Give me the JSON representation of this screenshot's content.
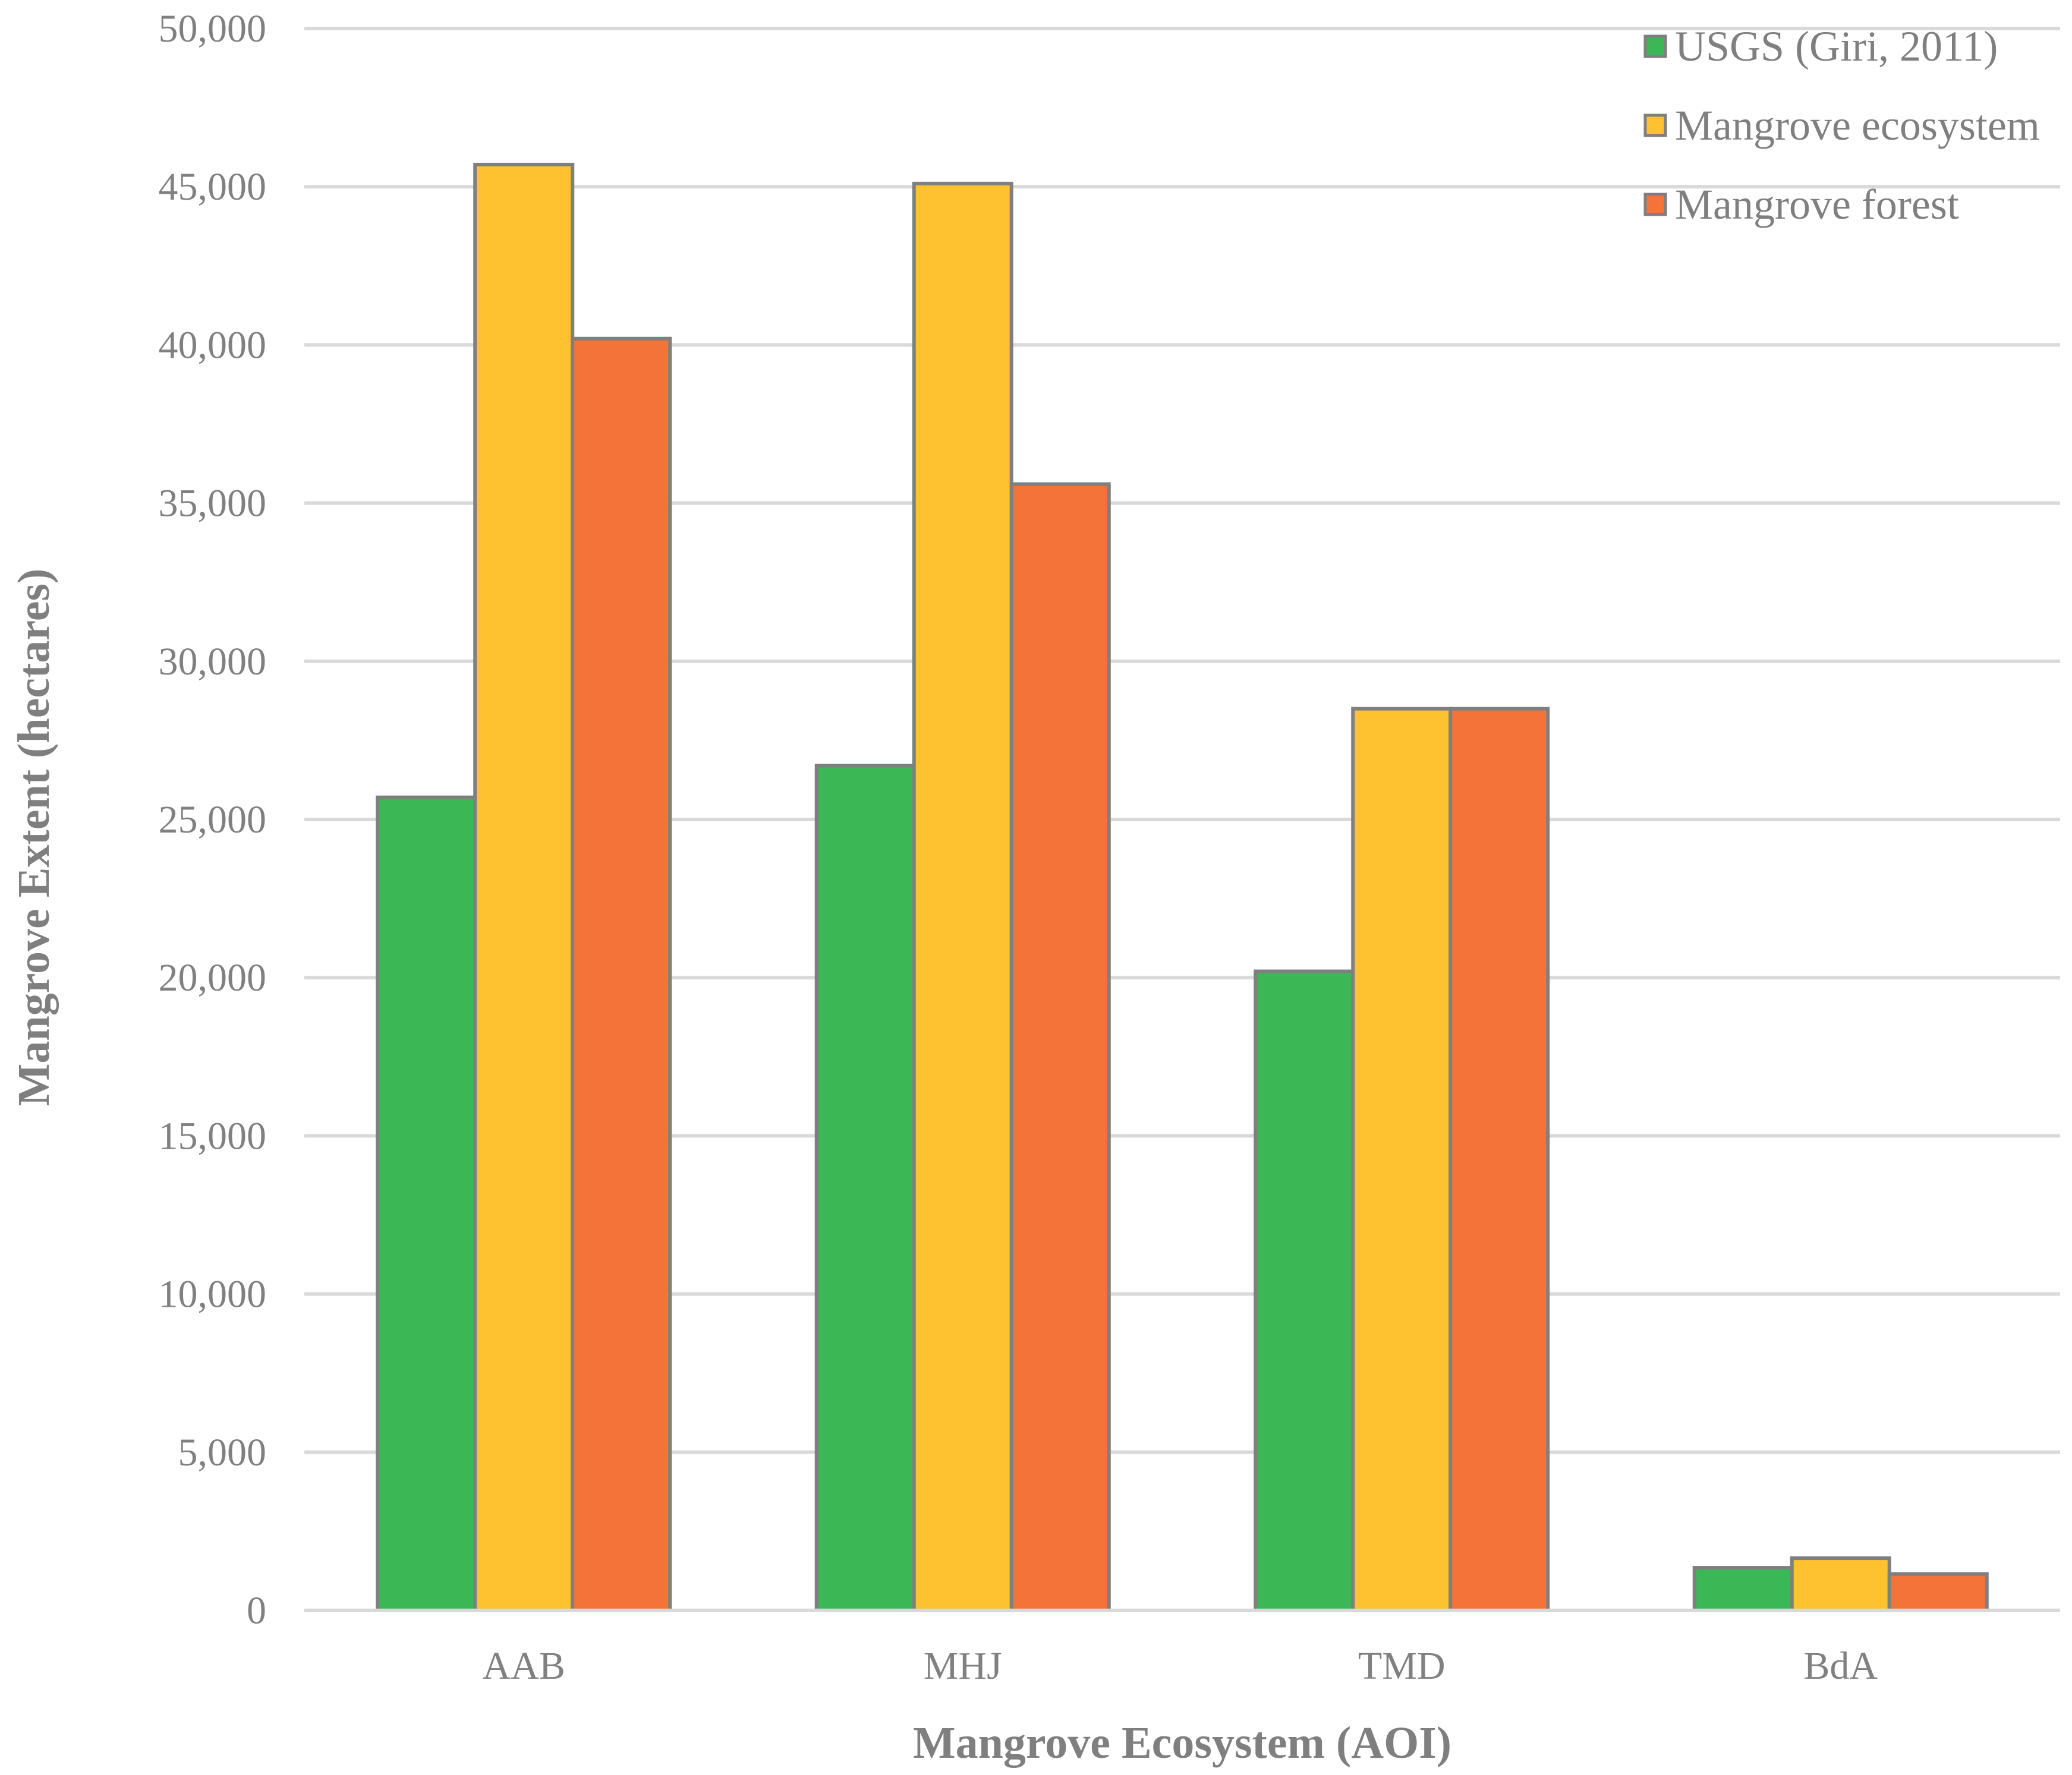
{
  "chart_data": {
    "type": "bar",
    "title": "",
    "xlabel": "Mangrove Ecosystem (AOI)",
    "ylabel": "Mangrove Extent (hectares)",
    "ylim": [
      0,
      50000
    ],
    "yticks": [
      0,
      5000,
      10000,
      15000,
      20000,
      25000,
      30000,
      35000,
      40000,
      45000,
      50000
    ],
    "ytick_labels": [
      "0",
      "5,000",
      "10,000",
      "15,000",
      "20,000",
      "25,000",
      "30,000",
      "35,000",
      "40,000",
      "45,000",
      "50,000"
    ],
    "categories": [
      "AAB",
      "MHJ",
      "TMD",
      "BdA"
    ],
    "grid": true,
    "legend_position": "top-right",
    "series": [
      {
        "name": "USGS (Giri, 2011)",
        "color": "#3cb755",
        "values": [
          25700,
          26700,
          20200,
          1350
        ]
      },
      {
        "name": "Mangrove ecosystem",
        "color": "#fec12f",
        "values": [
          45700,
          45100,
          28500,
          1650
        ]
      },
      {
        "name": "Mangrove forest",
        "color": "#f37338",
        "values": [
          40200,
          35600,
          28500,
          1150
        ]
      }
    ]
  }
}
